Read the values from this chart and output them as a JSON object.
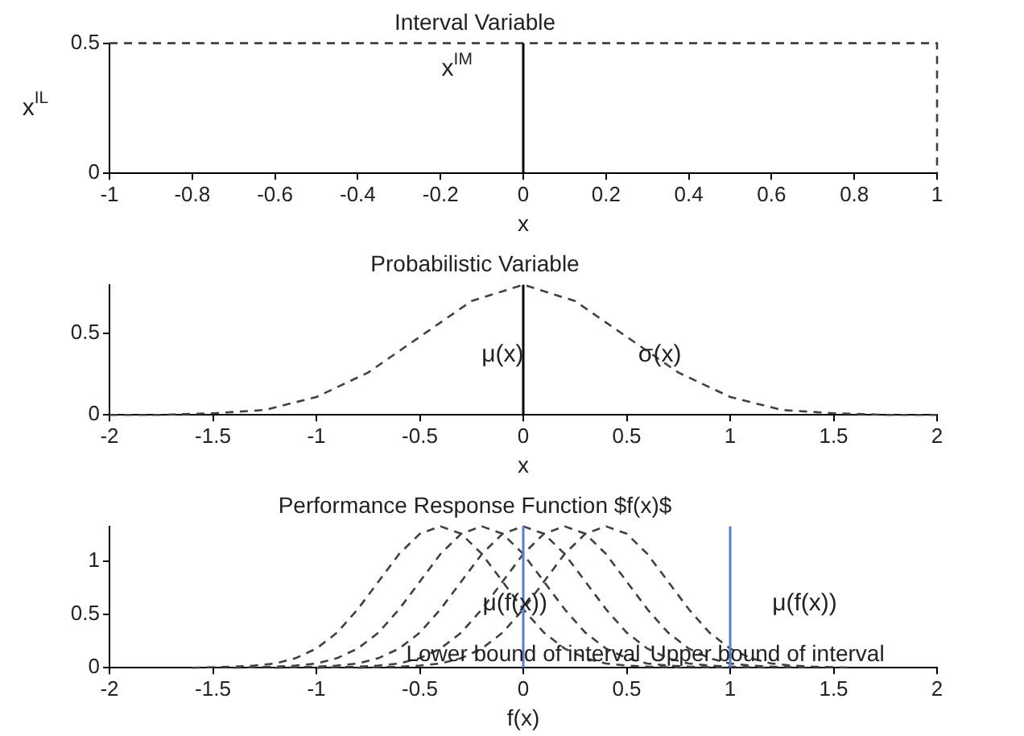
{
  "chart_data": [
    {
      "type": "line",
      "title": "Interval Variable",
      "xlabel": "x",
      "ylabel": "x$^{IL}$",
      "xlim": [
        -1,
        1
      ],
      "xticks": [
        -1,
        -0.8,
        -0.6,
        -0.4,
        -0.2,
        0,
        0.2,
        0.4,
        0.6,
        0.8,
        1
      ],
      "ylim": [
        0,
        0.5
      ],
      "yticks": [
        0,
        0.5
      ],
      "marker": "none",
      "series": [
        {
          "color": "#404040",
          "line_style": "dashed",
          "x": [
            -1,
            -0.5,
            0,
            0.5,
            1,
            1,
            1
          ],
          "values": [
            0.5,
            0.5,
            0.5,
            0.5,
            0.5,
            0.25,
            0
          ]
        }
      ],
      "ref_lines": [
        {
          "axis": "x",
          "value": 0,
          "color": "#000000"
        }
      ],
      "annotations": [
        "x$^{IM}$"
      ]
    },
    {
      "type": "line",
      "title": "Probabilistic Variable",
      "xlabel": "x",
      "xlim": [
        -2,
        2
      ],
      "xticks": [
        -2,
        -1.5,
        -1,
        -0.5,
        0,
        0.5,
        1,
        1.5,
        2
      ],
      "ylim": [
        0,
        0.8
      ],
      "yticks": [
        0,
        0.5
      ],
      "marker": "none",
      "series": [
        {
          "color": "#404040",
          "line_style": "dashed",
          "x": [
            -2,
            -1.75,
            -1.5,
            -1.25,
            -1,
            -0.75,
            -0.5,
            -0.25,
            0,
            0.25,
            0.5,
            0.75,
            1,
            1.25,
            1.5,
            1.75,
            2
          ],
          "values": [
            0,
            0,
            0.01,
            0.03,
            0.11,
            0.26,
            0.48,
            0.7,
            0.8,
            0.7,
            0.48,
            0.26,
            0.11,
            0.03,
            0.01,
            0,
            0
          ]
        }
      ],
      "ref_lines": [
        {
          "axis": "x",
          "value": 0,
          "color": "#000000"
        }
      ],
      "annotations": [
        "μ(x)",
        "σ(x)"
      ]
    },
    {
      "type": "line",
      "title": "Performance Response Function $f(x)$",
      "xlabel": "f(x)",
      "xlim": [
        -2,
        2
      ],
      "xticks": [
        -2,
        -1.5,
        -1,
        -0.5,
        0,
        0.5,
        1,
        1.5,
        2
      ],
      "ylim": [
        0,
        1.33
      ],
      "yticks": [
        0,
        0.5,
        1
      ],
      "marker": "none",
      "series": [
        {
          "color": "#404040",
          "line_style": "dashed",
          "x": [
            -1.6,
            -1.4,
            -1.3,
            -1.2,
            -1.1,
            -1.0,
            -0.9,
            -0.8,
            -0.7,
            -0.6,
            -0.5,
            -0.4,
            -0.3,
            -0.2,
            -0.1,
            0,
            0.1,
            0.2,
            0.3,
            0.4,
            0.5,
            0.6,
            0.8
          ],
          "values": [
            0,
            0.01,
            0.02,
            0.04,
            0.09,
            0.18,
            0.33,
            0.55,
            0.81,
            1.07,
            1.26,
            1.33,
            1.26,
            1.07,
            0.81,
            0.55,
            0.33,
            0.18,
            0.09,
            0.04,
            0.02,
            0.01,
            0
          ]
        },
        {
          "color": "#404040",
          "line_style": "dashed",
          "x": [
            -1.4,
            -1.2,
            -1.1,
            -1.0,
            -0.9,
            -0.8,
            -0.7,
            -0.6,
            -0.5,
            -0.4,
            -0.3,
            -0.2,
            -0.1,
            0,
            0.1,
            0.2,
            0.3,
            0.4,
            0.5,
            0.6,
            0.7,
            0.8,
            1.0
          ],
          "values": [
            0,
            0.01,
            0.02,
            0.04,
            0.09,
            0.18,
            0.33,
            0.55,
            0.81,
            1.07,
            1.26,
            1.33,
            1.26,
            1.07,
            0.81,
            0.55,
            0.33,
            0.18,
            0.09,
            0.04,
            0.02,
            0.01,
            0
          ]
        },
        {
          "color": "#404040",
          "line_style": "dashed",
          "x": [
            -1.2,
            -1.0,
            -0.9,
            -0.8,
            -0.7,
            -0.6,
            -0.5,
            -0.4,
            -0.3,
            -0.2,
            -0.1,
            0,
            0.1,
            0.2,
            0.3,
            0.4,
            0.5,
            0.6,
            0.7,
            0.8,
            0.9,
            1.0,
            1.2
          ],
          "values": [
            0,
            0.01,
            0.02,
            0.04,
            0.09,
            0.18,
            0.33,
            0.55,
            0.81,
            1.07,
            1.26,
            1.33,
            1.26,
            1.07,
            0.81,
            0.55,
            0.33,
            0.18,
            0.09,
            0.04,
            0.02,
            0.01,
            0
          ]
        },
        {
          "color": "#404040",
          "line_style": "dashed",
          "x": [
            -1.0,
            -0.8,
            -0.7,
            -0.6,
            -0.5,
            -0.4,
            -0.3,
            -0.2,
            -0.1,
            0,
            0.1,
            0.2,
            0.3,
            0.4,
            0.5,
            0.6,
            0.7,
            0.8,
            0.9,
            1.0,
            1.1,
            1.2,
            1.4
          ],
          "values": [
            0,
            0.01,
            0.02,
            0.04,
            0.09,
            0.18,
            0.33,
            0.55,
            0.81,
            1.07,
            1.26,
            1.33,
            1.26,
            1.07,
            0.81,
            0.55,
            0.33,
            0.18,
            0.09,
            0.04,
            0.02,
            0.01,
            0
          ]
        },
        {
          "color": "#404040",
          "line_style": "dashed",
          "x": [
            -0.8,
            -0.6,
            -0.5,
            -0.4,
            -0.3,
            -0.2,
            -0.1,
            0,
            0.1,
            0.2,
            0.3,
            0.4,
            0.5,
            0.6,
            0.7,
            0.8,
            0.9,
            1.0,
            1.1,
            1.2,
            1.3,
            1.4,
            1.6
          ],
          "values": [
            0,
            0.01,
            0.02,
            0.04,
            0.09,
            0.18,
            0.33,
            0.55,
            0.81,
            1.07,
            1.26,
            1.33,
            1.26,
            1.07,
            0.81,
            0.55,
            0.33,
            0.18,
            0.09,
            0.04,
            0.02,
            0.01,
            0
          ]
        }
      ],
      "ref_lines": [
        {
          "axis": "x",
          "value": 0,
          "color": "#5b7bd5",
          "label": "Lower bound of interval"
        },
        {
          "axis": "x",
          "value": 1,
          "color": "#5b7bd5",
          "label": "Upper bound of interval"
        }
      ],
      "annotations": [
        "μ(f(x))",
        "μ(f(x))"
      ]
    }
  ]
}
